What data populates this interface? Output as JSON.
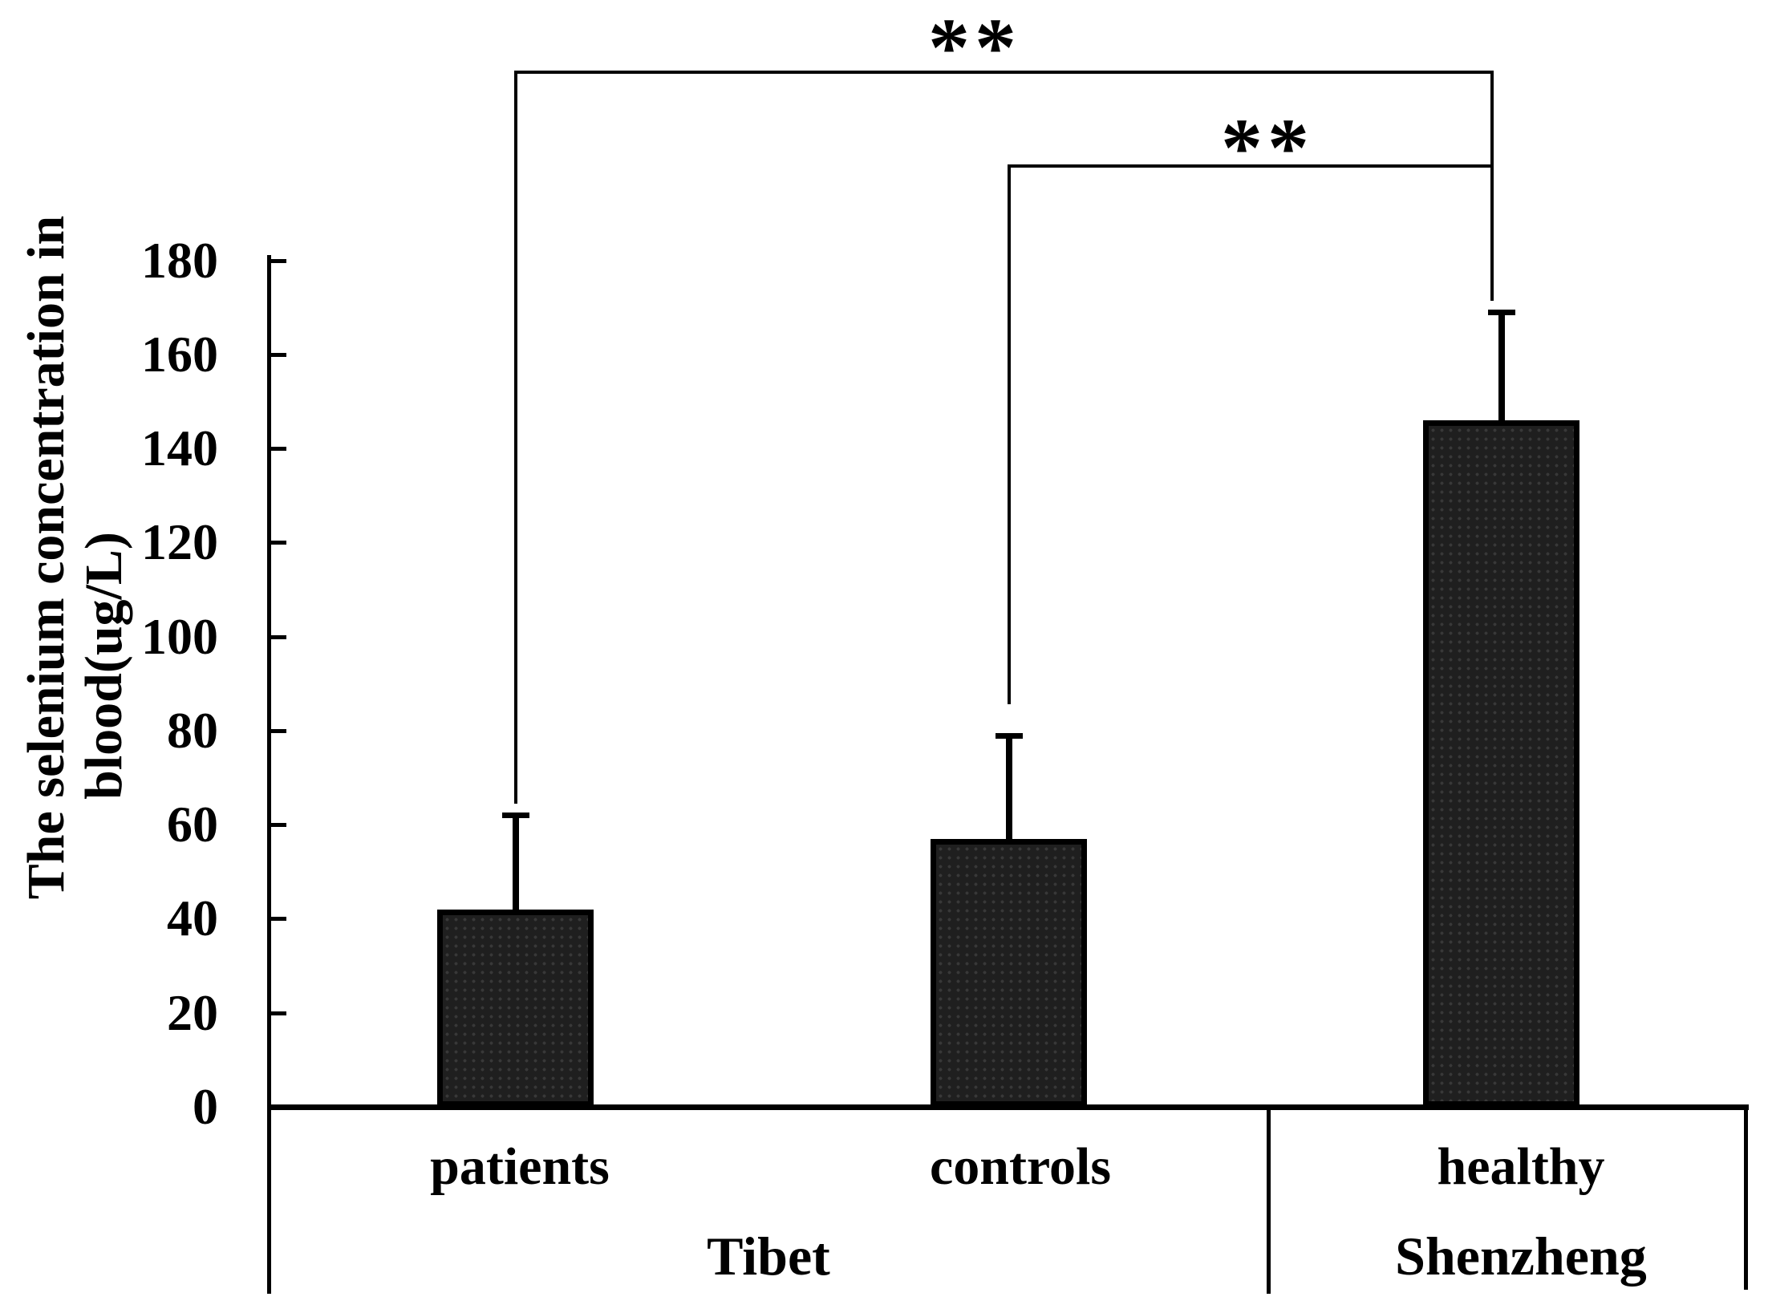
{
  "chart_data": {
    "type": "bar",
    "title": "",
    "ylabel_line1": "The selenium concentration in",
    "ylabel_line2": "blood(ug/L)",
    "ylim": [
      0,
      180
    ],
    "yticks": [
      0,
      20,
      40,
      60,
      80,
      100,
      120,
      140,
      160,
      180
    ],
    "grid": "off",
    "legend": "none",
    "categories": [
      "patients",
      "controls",
      "healthy"
    ],
    "groups": [
      {
        "label": "Tibet",
        "categories": [
          "patients",
          "controls"
        ]
      },
      {
        "label": "Shenzheng",
        "categories": [
          "healthy"
        ]
      }
    ],
    "values": [
      42,
      57,
      146
    ],
    "error_upper": [
      20,
      22,
      23
    ],
    "error_bar_tops": [
      62,
      79,
      169
    ],
    "significance": [
      {
        "between": [
          "patients",
          "healthy"
        ],
        "label": "**"
      },
      {
        "between": [
          "controls",
          "healthy"
        ],
        "label": "**"
      }
    ],
    "bar_fill": "#1f1f1f",
    "bar_dot_color": "#383838",
    "bar_border_color": "#000000",
    "line_color": "#000000"
  }
}
